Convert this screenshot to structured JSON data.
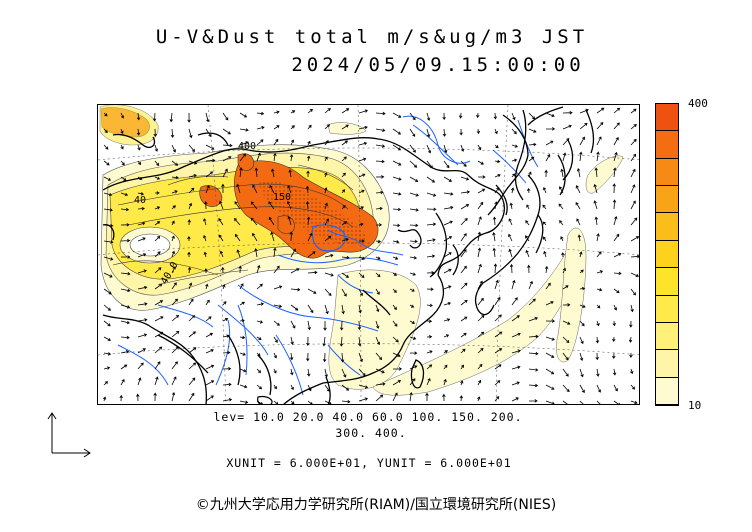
{
  "title": {
    "line1": "U-V&Dust total m/s&ug/m3 JST",
    "line2": "2024/05/09.15:00:00"
  },
  "colorbar": {
    "max_label": "400",
    "min_label": "10",
    "colors": [
      "#fffbd0",
      "#fff5a8",
      "#fff07a",
      "#ffea4a",
      "#fde32a",
      "#fcd21e",
      "#fbbd1a",
      "#f9a417",
      "#f78a14",
      "#f46d12",
      "#ef5210"
    ]
  },
  "legend": {
    "levels_line1": "lev= 10.0 20.0 40.0 60.0 100. 150. 200.",
    "levels_line2": "300. 400.",
    "unit_line": "XUNIT = 6.000E+01, YUNIT = 6.000E+01"
  },
  "contour_labels": [
    "40",
    "40.0",
    "400",
    "150"
  ],
  "colors": {
    "coast": "#000000",
    "river": "#1e63ff",
    "dust_low": "#fff5a8",
    "dust_mid": "#ffe066",
    "dust_high": "#f36a12"
  },
  "copyright": "©九州大学応用力学研究所(RIAM)/国立環境研究所(NIES)"
}
